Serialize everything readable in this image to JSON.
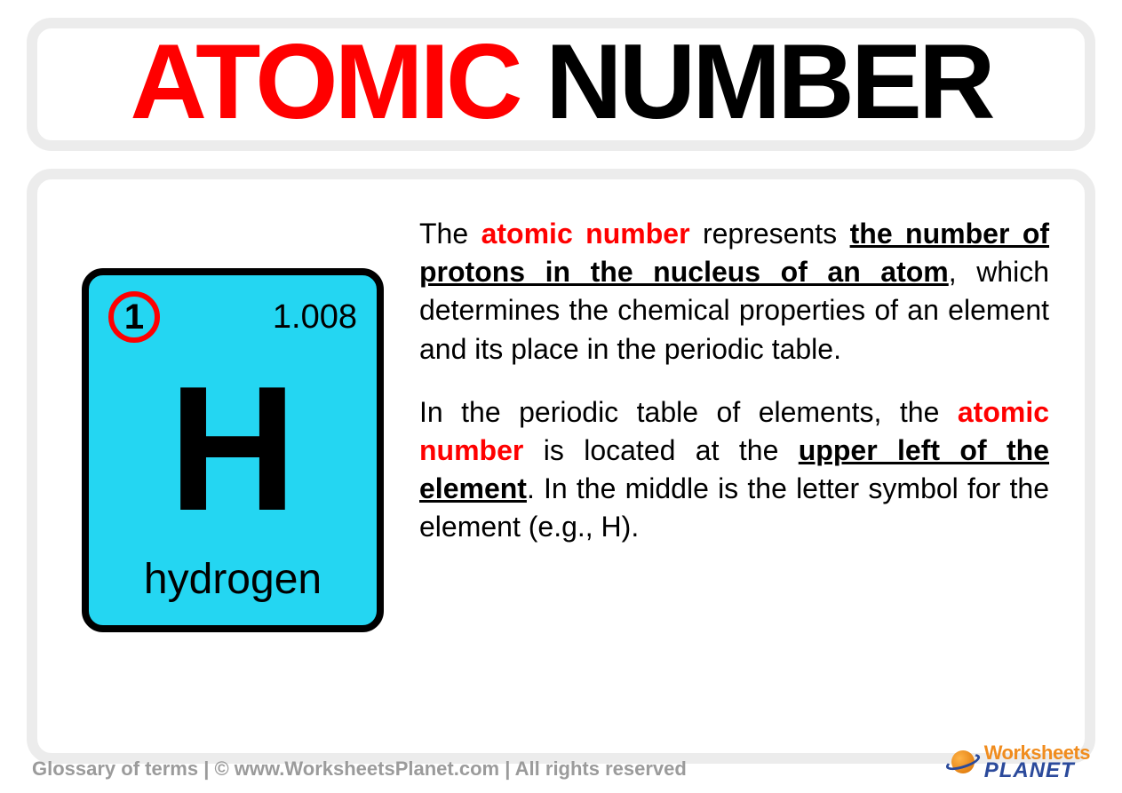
{
  "title": {
    "word1": "ATOMIC",
    "word2": "NUMBER"
  },
  "element": {
    "atomic_number": "1",
    "atomic_mass": "1.008",
    "symbol": "H",
    "name": "hydrogen",
    "tile_bg": "#24d6f2",
    "circle_border": "#ff0000",
    "tile_border": "#000000"
  },
  "definition": {
    "p1_a": "The ",
    "p1_kw": "atomic number",
    "p1_b": " represents ",
    "p1_ul": "the number of protons in the nucleus of an atom",
    "p1_c": ", which determines the chemical properties of an element and its place in the periodic table.",
    "p2_a": "In the periodic table of elements, the ",
    "p2_kw": "atomic number",
    "p2_b": " is located at the ",
    "p2_ul": "upper left of the element",
    "p2_c": ". In the middle is the letter symbol for the element (e.g., H)."
  },
  "footer": {
    "text": "Glossary of terms  |  ©  www.WorksheetsPlanet.com  |  All rights reserved",
    "logo_line1": "Worksheets",
    "logo_line2": "PLANET"
  },
  "colors": {
    "card_border": "#ececec",
    "accent_red": "#ff0000",
    "text": "#000000",
    "footer_text": "#9b9b9b",
    "logo_orange": "#f08c1e",
    "logo_blue": "#2b4a9b"
  }
}
